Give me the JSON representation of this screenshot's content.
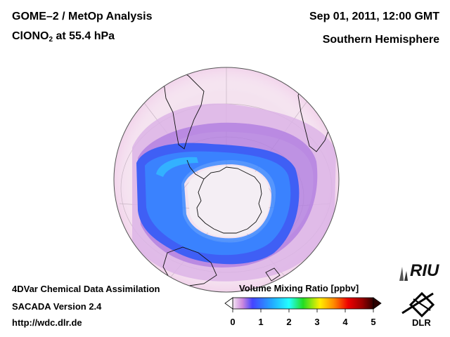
{
  "title": {
    "line1": "GOME–2 / MetOp Analysis",
    "species": "ClONO",
    "species_sub": "2",
    "level": " at 55.4 hPa"
  },
  "date": "Sep 01, 2011, 12:00 GMT",
  "region": "Southern Hemisphere",
  "footer": {
    "line1": "4DVar Chemical Data Assimilation",
    "line2": "SACADA Version 2.4",
    "line3": "http://wdc.dlr.de"
  },
  "colorbar": {
    "title": "Volume Mixing Ratio [ppbv]",
    "ticks": [
      "0",
      "1",
      "2",
      "3",
      "4",
      "5"
    ],
    "min": 0,
    "max": 5,
    "colors": [
      "#f3e4f2",
      "#cc88dd",
      "#4444ff",
      "#22aaff",
      "#22ffff",
      "#22dd22",
      "#ffee00",
      "#ff8800",
      "#ee0000",
      "#990000",
      "#330000"
    ]
  },
  "logos": {
    "riu": "RIU",
    "dlr": "DLR"
  },
  "map": {
    "projection": "orthographic-south-polar",
    "field": "ClONO2 volume mixing ratio",
    "features": [
      "Antarctica",
      "South America",
      "Africa",
      "Australia"
    ]
  }
}
